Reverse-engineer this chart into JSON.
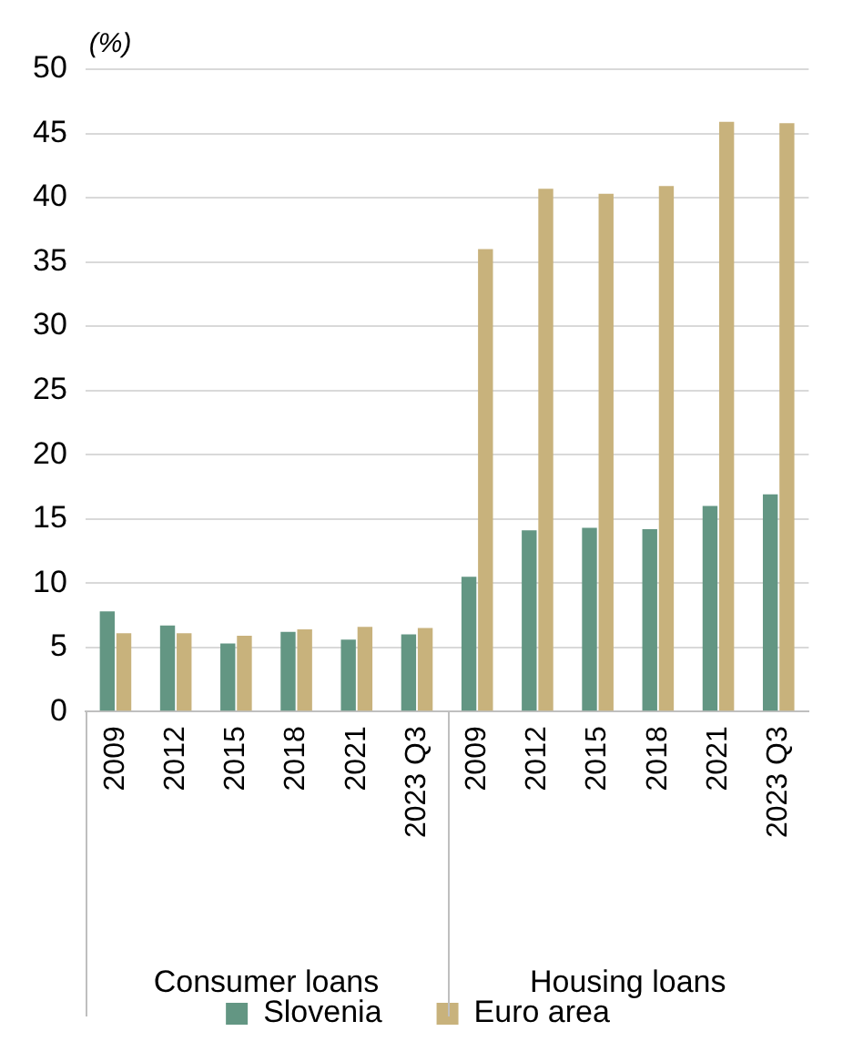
{
  "chart_data": {
    "type": "bar",
    "ylabel": "(%)",
    "categories": [
      "2009",
      "2012",
      "2015",
      "2018",
      "2021",
      "2023 Q3",
      "2009",
      "2012",
      "2015",
      "2018",
      "2021",
      "2023 Q3"
    ],
    "series": [
      {
        "name": "Slovenia",
        "color": "#639683",
        "values": [
          7.8,
          6.7,
          5.3,
          6.2,
          5.6,
          6.0,
          10.5,
          14.1,
          14.3,
          14.2,
          16.0,
          16.9
        ]
      },
      {
        "name": "Euro area",
        "color": "#c8b27c",
        "values": [
          6.1,
          6.1,
          5.9,
          6.4,
          6.6,
          6.5,
          36.0,
          40.7,
          40.3,
          40.9,
          45.9,
          45.8
        ]
      }
    ],
    "annotations": [
      "Consumer loans",
      "Housing loans"
    ],
    "ylim": [
      0,
      50
    ],
    "yticks": [
      0,
      5,
      10,
      15,
      20,
      25,
      30,
      35,
      40,
      45,
      50
    ],
    "grid": "y",
    "legend": "bottom"
  }
}
